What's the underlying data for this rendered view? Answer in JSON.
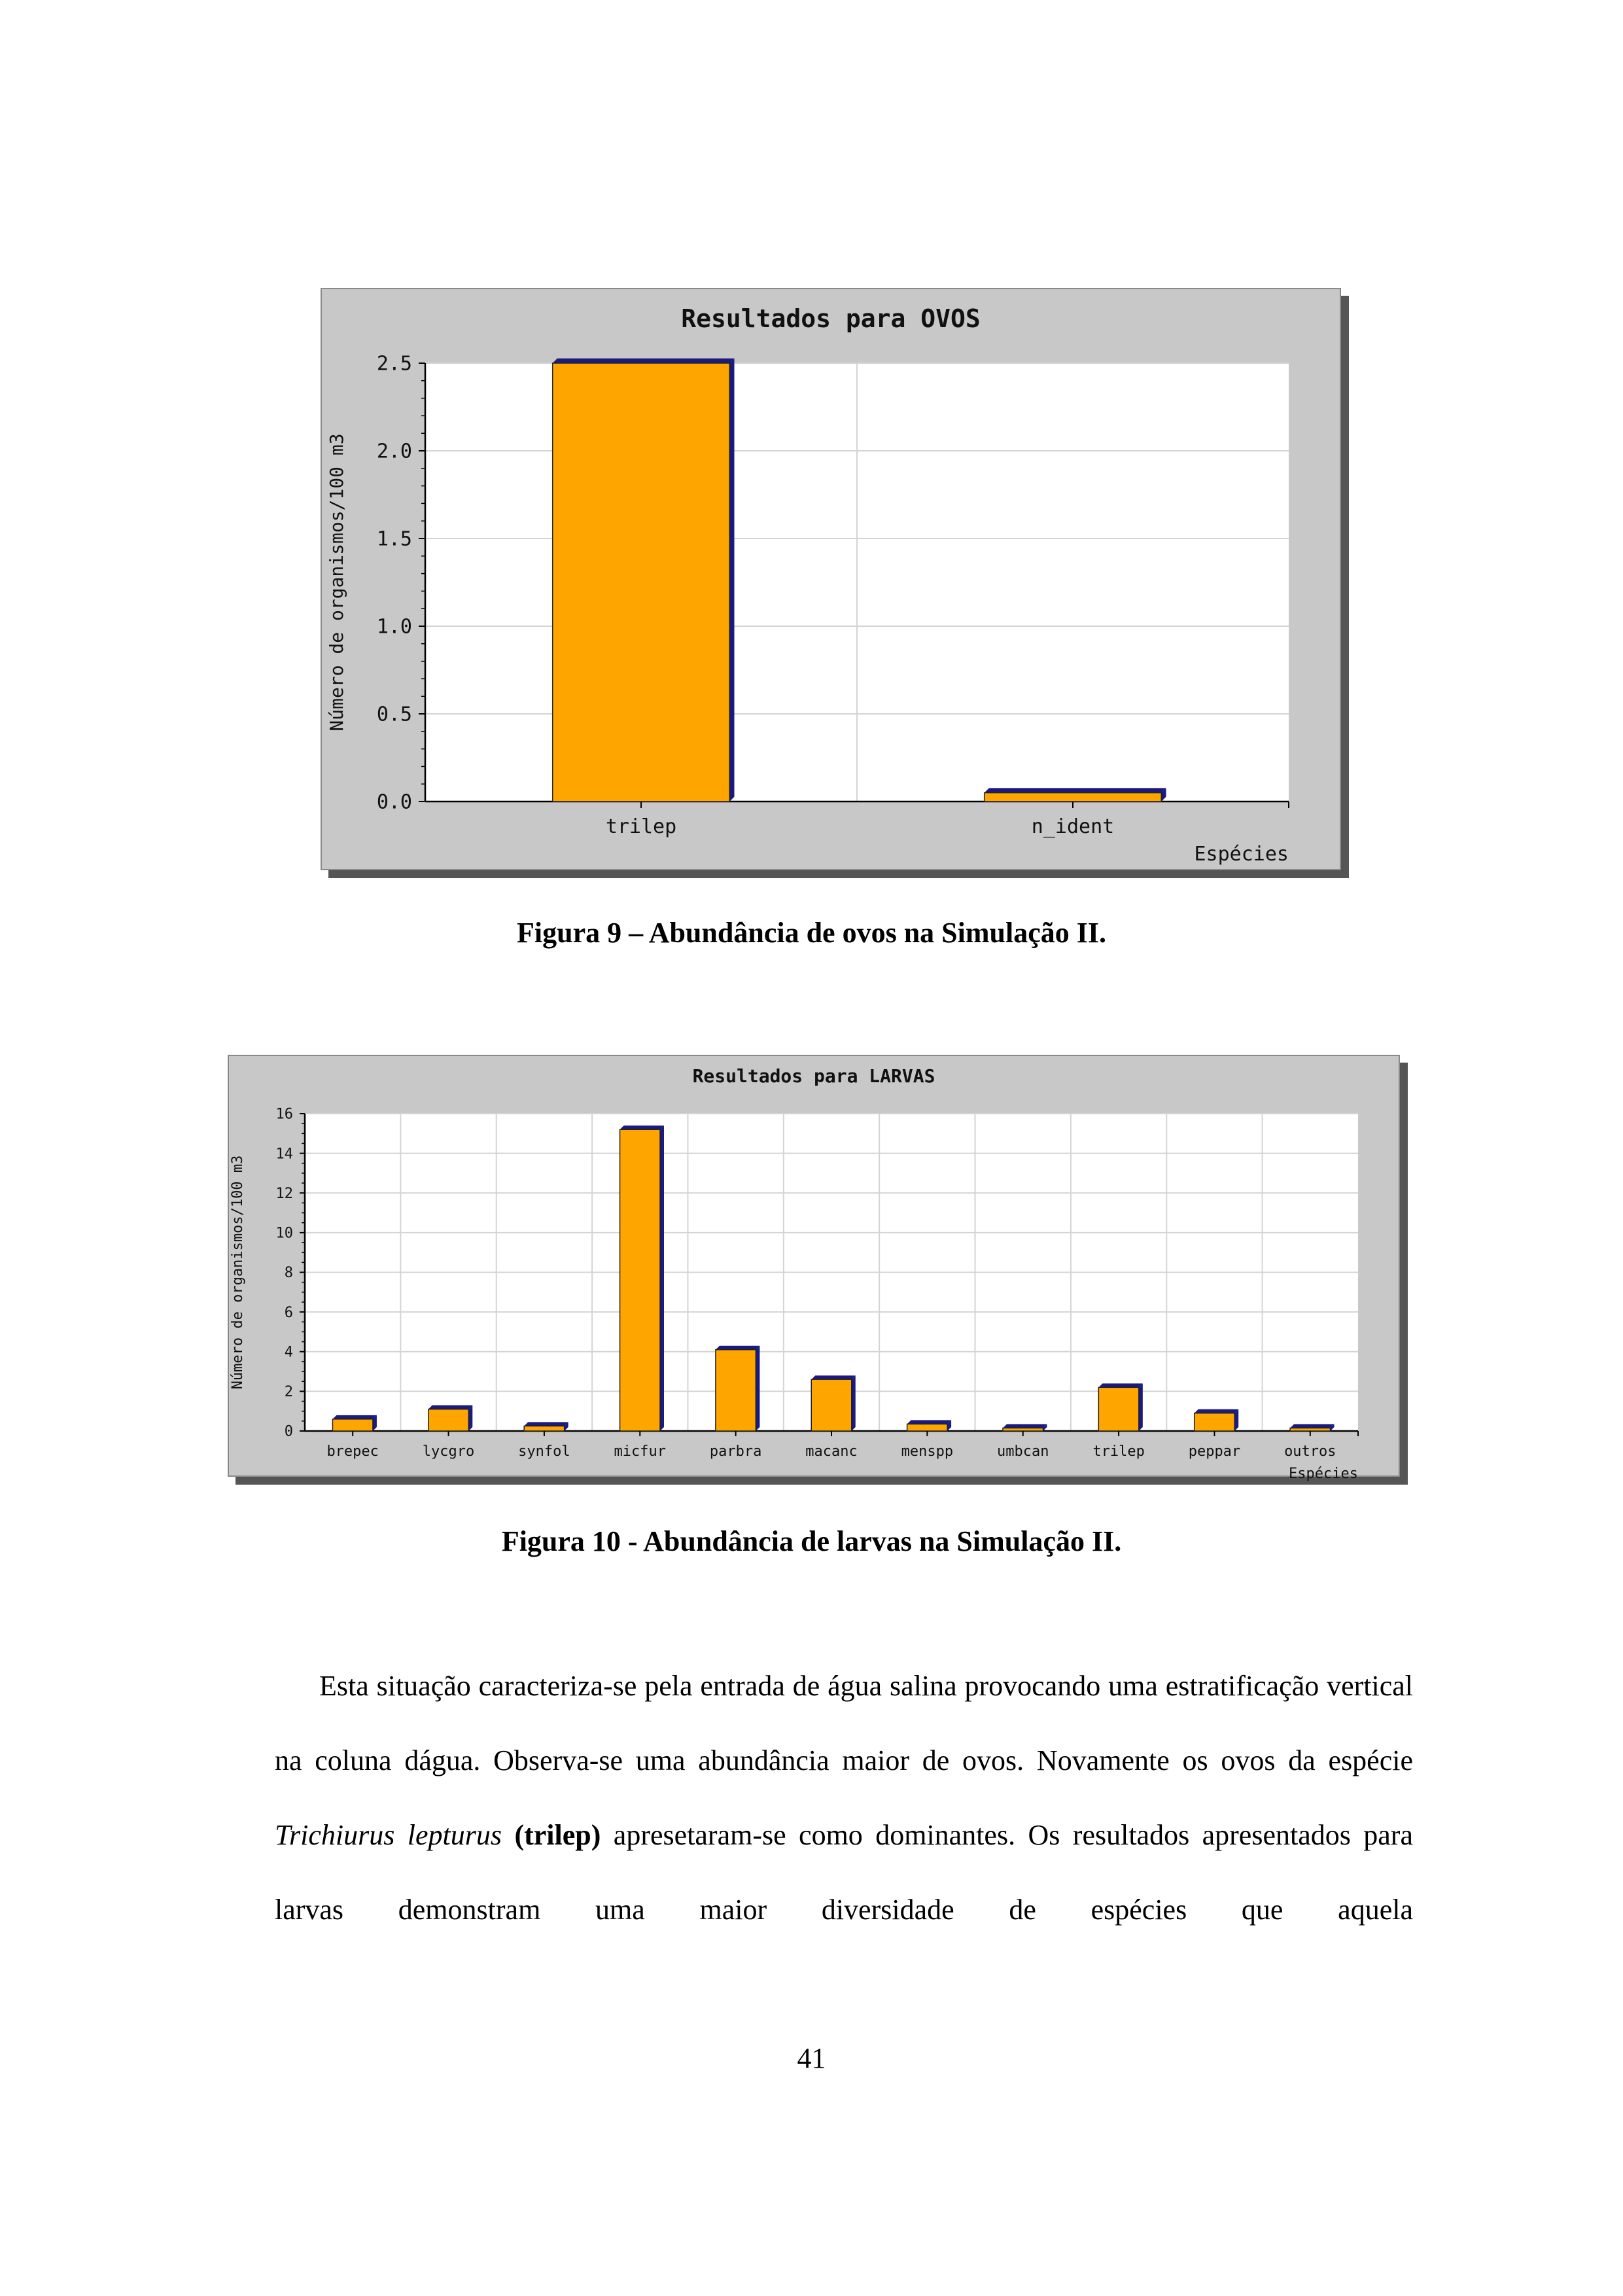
{
  "page": {
    "number": "41"
  },
  "figures": [
    {
      "caption": "Figura 9 – Abundância de ovos na Simulação II."
    },
    {
      "caption": "Figura 10 - Abundância de larvas na Simulação II."
    }
  ],
  "paragraph": {
    "part1": "Esta situação caracteriza-se pela entrada de água salina provocando uma estratificação vertical na coluna dágua.  Observa-se uma abundância maior de ovos. Novamente os ovos da espécie ",
    "species_italic": "Trichiurus lepturus",
    "species_code": "(trilep)",
    "part2": " apresetaram-se como dominantes. Os resultados apresentados para larvas demonstram uma maior diversidade de espécies que aquela"
  },
  "chart_data": [
    {
      "type": "bar",
      "title": "Resultados para OVOS",
      "xlabel": "Espécies",
      "ylabel": "Número de organismos/100 m3",
      "categories": [
        "trilep",
        "n_ident"
      ],
      "values": [
        2.5,
        0.05
      ],
      "ylim": [
        0,
        2.5
      ],
      "yticks": [
        0.0,
        0.5,
        1.0,
        1.5,
        2.0,
        2.5
      ],
      "ytick_labels": [
        "0.0",
        "0.5",
        "1.0",
        "1.5",
        "2.0",
        "2.5"
      ],
      "grid": true,
      "colors": {
        "bar": "#FFA500",
        "bar_shadow": "#1A1A80",
        "frame": "#C8C8C8",
        "plot": "#FFFFFF"
      }
    },
    {
      "type": "bar",
      "title": "Resultados para LARVAS",
      "xlabel": "Espécies",
      "ylabel": "Número de organismos/100 m3",
      "categories": [
        "brepec",
        "lycgro",
        "synfol",
        "micfur",
        "parbra",
        "macanc",
        "menspp",
        "umbcan",
        "trilep",
        "peppar",
        "outros"
      ],
      "values": [
        0.6,
        1.1,
        0.25,
        15.2,
        4.1,
        2.6,
        0.35,
        0.15,
        2.2,
        0.9,
        0.15
      ],
      "ylim": [
        0,
        16
      ],
      "yticks": [
        0,
        2,
        4,
        6,
        8,
        10,
        12,
        14,
        16
      ],
      "ytick_labels": [
        "0",
        "2",
        "4",
        "6",
        "8",
        "10",
        "12",
        "14",
        "16"
      ],
      "grid": true,
      "colors": {
        "bar": "#FFA500",
        "bar_shadow": "#1A1A80",
        "frame": "#C8C8C8",
        "plot": "#FFFFFF"
      }
    }
  ]
}
